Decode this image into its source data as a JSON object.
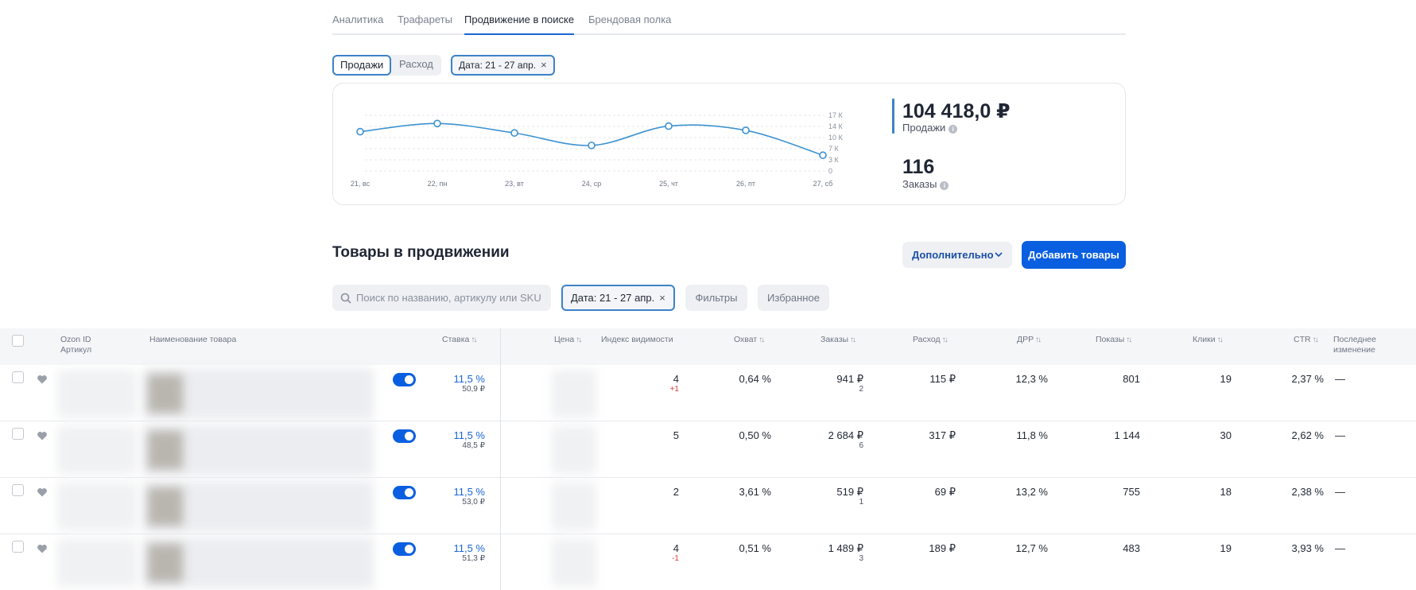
{
  "tabs": [
    "Аналитика",
    "Трафареты",
    "Продвижение в поиске",
    "Брендовая полка"
  ],
  "active_tab": "Продвижение в поиске",
  "segment": {
    "options": [
      "Продажи",
      "Расход"
    ],
    "selected": "Продажи"
  },
  "date_chip": {
    "label": "Дата: 21 - 27 апр.",
    "close": "×"
  },
  "chart_data": {
    "type": "line",
    "x": [
      "21, вс",
      "22, пн",
      "23, вт",
      "24, ср",
      "25, чт",
      "26, пт",
      "27, сб"
    ],
    "series": [
      {
        "values": [
          12000,
          14500,
          11600,
          7800,
          13700,
          12400,
          4800
        ]
      }
    ],
    "ytick_labels": [
      "17 К",
      "14 К",
      "10 К",
      "7 К",
      "3 К",
      "0"
    ],
    "ylim": [
      0,
      17000
    ],
    "grid": true,
    "color": "#3d92d0"
  },
  "stats": {
    "sales_value": "104 418,0 ₽",
    "sales_label": "Продажи",
    "orders_value": "116",
    "orders_label": "Заказы",
    "info_glyph": "i"
  },
  "section": {
    "title": "Товары в продвижении",
    "more_label": "Дополнительно",
    "add_label": "Добавить товары"
  },
  "toolbar": {
    "search_placeholder": "Поиск по названию, артикулу или SKU",
    "date_label": "Дата: 21 - 27 апр.",
    "filters_label": "Фильтры",
    "favorites_label": "Избранное"
  },
  "table": {
    "headers": {
      "ozon_id": "Ozon ID",
      "article": "Артикул",
      "name": "Наименование товара",
      "bid": "Ставка",
      "price": "Цена",
      "visibility": "Индекс видимости",
      "reach": "Охват",
      "orders": "Заказы",
      "spend": "Расход",
      "drr": "ДРР",
      "impressions": "Показы",
      "clicks": "Клики",
      "ctr": "CTR",
      "last_change_1": "Последнее",
      "last_change_2": "изменение",
      "sort_glyph": "↑↓"
    },
    "rows": [
      {
        "bid": "11,5 %",
        "bid_sub": "50,9 ₽",
        "visibility": "4",
        "visibility_delta": "+1",
        "reach": "0,64 %",
        "orders": "941 ₽",
        "orders_count": "2",
        "spend": "115 ₽",
        "drr": "12,3 %",
        "impressions": "801",
        "clicks": "19",
        "ctr": "2,37 %",
        "last_change": "—"
      },
      {
        "bid": "11,5 %",
        "bid_sub": "48,5 ₽",
        "visibility": "5",
        "visibility_delta": "",
        "reach": "0,50 %",
        "orders": "2 684 ₽",
        "orders_count": "6",
        "spend": "317 ₽",
        "drr": "11,8 %",
        "impressions": "1 144",
        "clicks": "30",
        "ctr": "2,62 %",
        "last_change": "—"
      },
      {
        "bid": "11,5 %",
        "bid_sub": "53,0 ₽",
        "visibility": "2",
        "visibility_delta": "",
        "reach": "3,61 %",
        "orders": "519 ₽",
        "orders_count": "1",
        "spend": "69 ₽",
        "drr": "13,2 %",
        "impressions": "755",
        "clicks": "18",
        "ctr": "2,38 %",
        "last_change": "—"
      },
      {
        "bid": "11,5 %",
        "bid_sub": "51,3 ₽",
        "visibility": "4",
        "visibility_delta": "-1",
        "reach": "0,51 %",
        "orders": "1 489 ₽",
        "orders_count": "3",
        "spend": "189 ₽",
        "drr": "12,7 %",
        "impressions": "483",
        "clicks": "19",
        "ctr": "3,93 %",
        "last_change": "—"
      }
    ]
  }
}
